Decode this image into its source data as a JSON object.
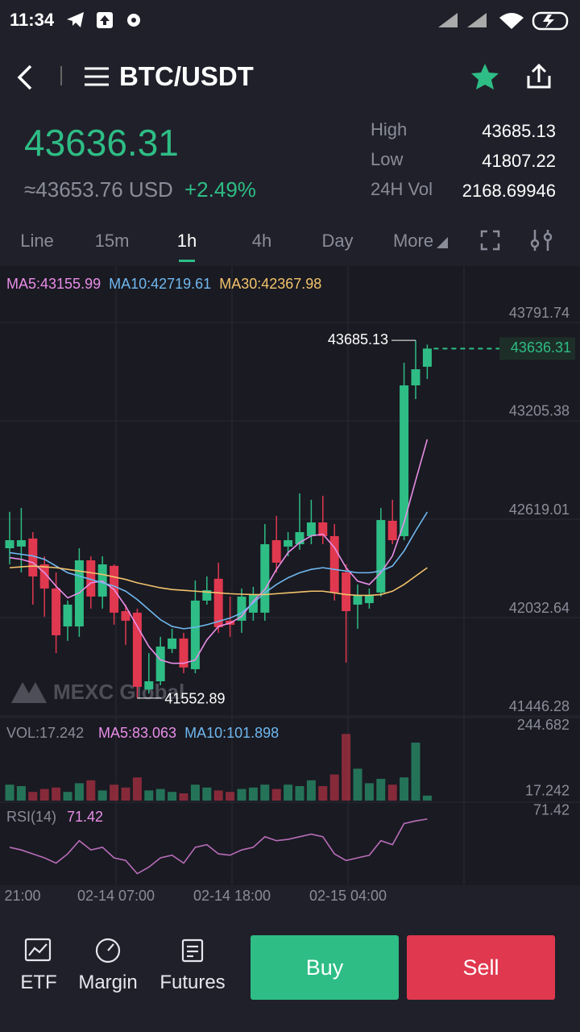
{
  "status_bar": {
    "time": "11:34"
  },
  "header": {
    "pair": "BTC/USDT"
  },
  "ticker": {
    "price": "43636.31",
    "usd": "≈43653.76 USD",
    "change": "+2.49%",
    "stats": [
      {
        "label": "High",
        "value": "43685.13"
      },
      {
        "label": "Low",
        "value": "41807.22"
      },
      {
        "label": "24H Vol",
        "value": "2168.69946"
      }
    ]
  },
  "tabs": {
    "items": [
      "Line",
      "15m",
      "1h",
      "4h",
      "Day",
      "More"
    ],
    "active": 2
  },
  "chart_data": {
    "type": "candlestick",
    "watermark": "MEXC Global",
    "ylim": [
      41446.28,
      43791.74
    ],
    "yticks": [
      41446.28,
      42032.64,
      42619.01,
      43205.38,
      43791.74
    ],
    "up_color": "#2ebd85",
    "down_color": "#e0384f",
    "open": [
      42446,
      42456,
      42504,
      42350,
      42206,
      41980,
      41980,
      42374,
      42158,
      42341,
      42071,
      42062,
      41605,
      41653,
      41846,
      41908,
      41725,
      42134,
      42264,
      42014,
      42014,
      42062,
      42062,
      42494,
      42456,
      42470,
      42518,
      42600,
      42518,
      42302,
      42110,
      42119,
      42182,
      42610,
      42518,
      43417,
      43528
    ],
    "close": [
      42494,
      42494,
      42278,
      42206,
      41927,
      42110,
      42374,
      42158,
      42350,
      42062,
      42014,
      41620,
      41653,
      41860,
      41908,
      41735,
      42134,
      42196,
      41975,
      41990,
      42158,
      42168,
      42470,
      42360,
      42494,
      42542,
      42600,
      42518,
      42182,
      42071,
      42168,
      42168,
      42614,
      42494,
      43417,
      43513,
      43636.31
    ],
    "high": [
      42663,
      42686,
      42542,
      42398,
      42302,
      42134,
      42446,
      42398,
      42398,
      42350,
      42110,
      42086,
      41821,
      41918,
      41966,
      41942,
      42254,
      42278,
      42360,
      42158,
      42206,
      42216,
      42590,
      42639,
      42542,
      42773,
      42735,
      42759,
      42590,
      42350,
      42230,
      42206,
      42686,
      42735,
      43552,
      43685.13,
      43660
    ],
    "low": [
      42350,
      42302,
      42110,
      42038,
      41821,
      41894,
      41918,
      42086,
      42086,
      41990,
      41870,
      41552.89,
      41580,
      41629,
      41821,
      41701,
      41701,
      42110,
      41942,
      41918,
      41942,
      42014,
      42014,
      42302,
      42398,
      42437,
      42470,
      42470,
      42134,
      41764,
      41966,
      42086,
      42158,
      42470,
      42494,
      43335,
      43455
    ],
    "series": [
      {
        "name": "MA5:43155.99",
        "color": "#e88ee6",
        "values": [
          42390,
          42380,
          42360,
          42300,
          42220,
          42150,
          42180,
          42240,
          42250,
          42200,
          42100,
          41980,
          41860,
          41780,
          41760,
          41760,
          41780,
          41900,
          41980,
          42000,
          42040,
          42130,
          42200,
          42320,
          42420,
          42480,
          42520,
          42530,
          42450,
          42330,
          42250,
          42230,
          42300,
          42400,
          42600,
          42850,
          43095
        ]
      },
      {
        "name": "MA10:42719.61",
        "color": "#6fb8f0",
        "values": [
          42420,
          42410,
          42400,
          42380,
          42340,
          42300,
          42280,
          42260,
          42240,
          42220,
          42190,
          42140,
          42080,
          42020,
          41980,
          41966,
          41975,
          41990,
          42010,
          42030,
          42060,
          42120,
          42180,
          42230,
          42270,
          42300,
          42320,
          42330,
          42320,
          42310,
          42300,
          42300,
          42310,
          42340,
          42430,
          42550,
          42662
        ]
      },
      {
        "name": "MA30:42367.98",
        "color": "#f2c36b",
        "values": [
          42330,
          42335,
          42340,
          42335,
          42330,
          42320,
          42310,
          42300,
          42290,
          42275,
          42260,
          42240,
          42225,
          42210,
          42200,
          42195,
          42190,
          42185,
          42180,
          42175,
          42172,
          42170,
          42170,
          42175,
          42180,
          42185,
          42190,
          42190,
          42180,
          42170,
          42165,
          42165,
          42170,
          42190,
          42230,
          42280,
          42330
        ]
      }
    ],
    "time_labels": [
      "21:00",
      "02-14 07:00",
      "02-14 18:00",
      "02-15 04:00"
    ],
    "volume": {
      "label": "VOL:17.242",
      "ylim": [
        0,
        244.682
      ],
      "yticks": [
        17.242,
        244.682
      ],
      "values": [
        55,
        50,
        30,
        40,
        45,
        30,
        60,
        70,
        35,
        55,
        45,
        80,
        35,
        40,
        30,
        25,
        55,
        45,
        35,
        30,
        40,
        45,
        55,
        40,
        55,
        50,
        70,
        50,
        90,
        230,
        110,
        60,
        75,
        55,
        80,
        200,
        17.242
      ],
      "legend": [
        {
          "name": "MA5:83.063",
          "color": "#e88ee6"
        },
        {
          "name": "MA10:101.898",
          "color": "#6fb8f0"
        }
      ]
    },
    "rsi": {
      "label": "RSI(14)",
      "value": 71.42,
      "color": "#b86db8",
      "ylim": [
        20,
        75
      ],
      "yticks": [
        71.42
      ],
      "values": [
        50,
        48,
        45,
        42,
        38,
        45,
        55,
        48,
        50,
        42,
        40,
        30,
        35,
        42,
        44,
        38,
        50,
        52,
        45,
        44,
        48,
        50,
        58,
        55,
        56,
        58,
        60,
        58,
        45,
        40,
        42,
        44,
        55,
        52,
        68,
        70,
        71.42
      ]
    }
  },
  "bottom_nav": {
    "items": [
      "ETF",
      "Margin",
      "Futures"
    ],
    "buy": "Buy",
    "sell": "Sell"
  }
}
